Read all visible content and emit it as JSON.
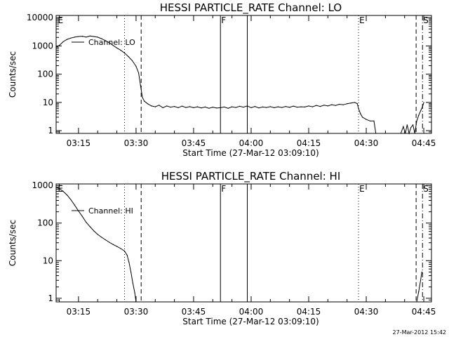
{
  "timestamp": "27-Mar-2012 15:42",
  "chart_data": [
    {
      "type": "line",
      "title": "HESSI PARTICLE_RATE Channel: LO",
      "xlabel": "Start Time (27-Mar-12 03:09:10)",
      "ylabel": "Counts/sec",
      "yscale": "log",
      "xlim": [
        "03:09:10",
        "04:47:00"
      ],
      "ylim": [
        0.8,
        12000
      ],
      "x_ticks": [
        "03:15",
        "03:30",
        "03:45",
        "04:00",
        "04:15",
        "04:30",
        "04:45"
      ],
      "y_ticks": [
        "1",
        "10",
        "100",
        "1000",
        "10000"
      ],
      "legend": {
        "label": "Channel: LO",
        "placement": "top-left"
      },
      "markers": [
        {
          "time": "03:10:00",
          "style": "none",
          "label": "E"
        },
        {
          "time": "03:27:00",
          "style": "dotted",
          "label": ""
        },
        {
          "time": "03:31:20",
          "style": "dashed",
          "label": ""
        },
        {
          "time": "03:52:00",
          "style": "solid",
          "label": "F"
        },
        {
          "time": "03:59:00",
          "style": "solid",
          "label": ""
        },
        {
          "time": "04:28:00",
          "style": "dotted",
          "label": "E"
        },
        {
          "time": "04:43:00",
          "style": "dashed",
          "label": ""
        },
        {
          "time": "04:44:40",
          "style": "dashdot",
          "label": "S"
        }
      ],
      "series": [
        {
          "segments": [
            [
              [
                "03:09:10",
                900
              ],
              [
                "03:10:00",
                1050
              ],
              [
                "03:11:00",
                1400
              ],
              [
                "03:12:00",
                1700
              ],
              [
                "03:13:00",
                1900
              ],
              [
                "03:14:00",
                2050
              ],
              [
                "03:15:00",
                2150
              ],
              [
                "03:16:00",
                2200
              ],
              [
                "03:17:00",
                2050
              ],
              [
                "03:18:00",
                2250
              ],
              [
                "03:19:00",
                2150
              ],
              [
                "03:20:00",
                2050
              ],
              [
                "03:21:00",
                1800
              ],
              [
                "03:22:00",
                1550
              ],
              [
                "03:23:00",
                1300
              ],
              [
                "03:24:00",
                1050
              ],
              [
                "03:25:00",
                850
              ],
              [
                "03:26:00",
                700
              ],
              [
                "03:27:00",
                560
              ],
              [
                "03:28:00",
                420
              ],
              [
                "03:29:00",
                300
              ],
              [
                "03:30:00",
                190
              ],
              [
                "03:30:40",
                110
              ],
              [
                "03:31:10",
                40
              ],
              [
                "03:31:40",
                15
              ],
              [
                "03:32:10",
                11
              ],
              [
                "03:33:00",
                9
              ],
              [
                "03:34:00",
                7.5
              ],
              [
                "03:35:00",
                7
              ],
              [
                "03:36:00",
                8
              ],
              [
                "03:37:00",
                6.5
              ],
              [
                "03:38:00",
                7.5
              ],
              [
                "03:39:00",
                6.8
              ],
              [
                "03:40:00",
                7.2
              ],
              [
                "03:41:00",
                6.5
              ],
              [
                "03:42:00",
                7.4
              ],
              [
                "03:43:00",
                6.6
              ],
              [
                "03:44:00",
                7.1
              ],
              [
                "03:45:00",
                6.5
              ],
              [
                "03:46:00",
                7
              ],
              [
                "03:47:00",
                6.4
              ],
              [
                "03:48:00",
                6.9
              ],
              [
                "03:49:00",
                6.2
              ],
              [
                "03:50:00",
                6.8
              ],
              [
                "03:51:00",
                6.3
              ],
              [
                "03:52:00",
                6.5
              ],
              [
                "03:53:00",
                6.9
              ],
              [
                "03:54:00",
                6.2
              ],
              [
                "03:55:00",
                7
              ],
              [
                "03:56:00",
                6.6
              ],
              [
                "03:57:00",
                7.3
              ],
              [
                "03:58:00",
                6.8
              ],
              [
                "03:59:00",
                7.5
              ],
              [
                "04:00:00",
                6.5
              ],
              [
                "04:01:00",
                7.2
              ],
              [
                "04:02:00",
                6.4
              ],
              [
                "04:03:00",
                6.9
              ],
              [
                "04:04:00",
                6.6
              ],
              [
                "04:05:00",
                7.1
              ],
              [
                "04:06:00",
                6.5
              ],
              [
                "04:07:00",
                7
              ],
              [
                "04:08:00",
                6.6
              ],
              [
                "04:09:00",
                7.2
              ],
              [
                "04:10:00",
                6.7
              ],
              [
                "04:11:00",
                7.4
              ],
              [
                "04:12:00",
                6.8
              ],
              [
                "04:13:00",
                7
              ],
              [
                "04:14:00",
                6.9
              ],
              [
                "04:15:00",
                7.5
              ],
              [
                "04:16:00",
                7
              ],
              [
                "04:17:00",
                7.8
              ],
              [
                "04:18:00",
                7.2
              ],
              [
                "04:19:00",
                8
              ],
              [
                "04:20:00",
                7.5
              ],
              [
                "04:21:00",
                8.3
              ],
              [
                "04:22:00",
                7.8
              ],
              [
                "04:23:00",
                8.6
              ],
              [
                "04:24:00",
                8.2
              ],
              [
                "04:25:00",
                9
              ],
              [
                "04:26:00",
                9.5
              ],
              [
                "04:27:00",
                10
              ],
              [
                "04:27:40",
                9
              ],
              [
                "04:28:00",
                6
              ],
              [
                "04:28:30",
                4
              ],
              [
                "04:29:00",
                3
              ],
              [
                "04:30:00",
                2.5
              ],
              [
                "04:31:00",
                2.2
              ],
              [
                "04:32:00",
                2.2
              ],
              [
                "04:32:30",
                0.8
              ]
            ],
            [
              [
                "04:39:00",
                0.8
              ],
              [
                "04:39:40",
                1.4
              ],
              [
                "04:40:10",
                0.8
              ],
              [
                "04:40:40",
                1.6
              ],
              [
                "04:41:10",
                0.8
              ],
              [
                "04:41:40",
                1.3
              ],
              [
                "04:42:10",
                1.6
              ],
              [
                "04:42:40",
                0.8
              ],
              [
                "04:43:10",
                2.2
              ],
              [
                "04:43:40",
                3.5
              ],
              [
                "04:44:10",
                5
              ],
              [
                "04:44:40",
                7
              ],
              [
                "04:45:00",
                10
              ]
            ]
          ]
        }
      ]
    },
    {
      "type": "line",
      "title": "HESSI PARTICLE_RATE Channel: HI",
      "xlabel": "Start Time (27-Mar-12 03:09:10)",
      "ylabel": "Counts/sec",
      "yscale": "log",
      "xlim": [
        "03:09:10",
        "04:47:00"
      ],
      "ylim": [
        0.8,
        1100
      ],
      "x_ticks": [
        "03:15",
        "03:30",
        "03:45",
        "04:00",
        "04:15",
        "04:30",
        "04:45"
      ],
      "y_ticks": [
        "1",
        "10",
        "100",
        "1000"
      ],
      "legend": {
        "label": "Channel: HI",
        "placement": "top-left"
      },
      "markers": [
        {
          "time": "03:10:00",
          "style": "none",
          "label": "E"
        },
        {
          "time": "03:27:00",
          "style": "dotted",
          "label": ""
        },
        {
          "time": "03:31:20",
          "style": "dashed",
          "label": ""
        },
        {
          "time": "03:52:00",
          "style": "solid",
          "label": "F"
        },
        {
          "time": "03:59:00",
          "style": "solid",
          "label": ""
        },
        {
          "time": "04:28:00",
          "style": "dotted",
          "label": "E"
        },
        {
          "time": "04:43:00",
          "style": "dashed",
          "label": ""
        },
        {
          "time": "04:44:40",
          "style": "dashdot",
          "label": "S"
        }
      ],
      "series": [
        {
          "segments": [
            [
              [
                "03:09:10",
                900
              ],
              [
                "03:10:00",
                820
              ],
              [
                "03:11:00",
                700
              ],
              [
                "03:12:00",
                560
              ],
              [
                "03:13:00",
                420
              ],
              [
                "03:14:00",
                300
              ],
              [
                "03:15:00",
                210
              ],
              [
                "03:16:00",
                150
              ],
              [
                "03:17:00",
                105
              ],
              [
                "03:18:00",
                80
              ],
              [
                "03:19:00",
                62
              ],
              [
                "03:20:00",
                50
              ],
              [
                "03:21:00",
                42
              ],
              [
                "03:22:00",
                36
              ],
              [
                "03:23:00",
                31
              ],
              [
                "03:24:00",
                27
              ],
              [
                "03:25:00",
                24
              ],
              [
                "03:26:00",
                21
              ],
              [
                "03:27:00",
                18
              ],
              [
                "03:27:40",
                14
              ],
              [
                "03:28:10",
                9
              ],
              [
                "03:28:40",
                5
              ],
              [
                "03:29:10",
                2.5
              ],
              [
                "03:29:40",
                1.4
              ],
              [
                "03:30:00",
                0.8
              ]
            ],
            [
              [
                "04:43:10",
                0.8
              ],
              [
                "04:43:40",
                1.5
              ],
              [
                "04:44:10",
                3
              ],
              [
                "04:44:30",
                5
              ]
            ]
          ]
        }
      ]
    }
  ]
}
